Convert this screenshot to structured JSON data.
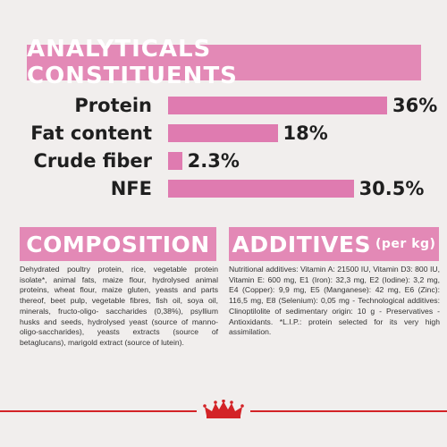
{
  "colors": {
    "pink": "#e389b6",
    "bar_pink": "#df7bb0",
    "text": "#1f1f1f",
    "background": "#f1eeed",
    "brand_red": "#d32327"
  },
  "analytics": {
    "title": "ANALYTICALS CONSTITUENTS",
    "rows": [
      {
        "label": "Protein",
        "value": "36%",
        "percent": 36
      },
      {
        "label": "Fat content",
        "value": "18%",
        "percent": 18
      },
      {
        "label": "Crude fiber",
        "value": "2.3%",
        "percent": 2.3
      },
      {
        "label": "NFE",
        "value": "30.5%",
        "percent": 30.5
      }
    ]
  },
  "composition": {
    "title": "COMPOSITION",
    "text": "Dehydrated poultry protein, rice, vegetable protein isolate*, animal fats, maize flour, hydrolysed animal proteins, wheat flour, maize gluten, yeasts and parts thereof, beet pulp, vegetable fibres, fish oil, soya oil, minerals, fructo-oligo- saccharides (0,38%), psyllium husks and seeds, hydrolysed yeast (source of manno-oligo-saccharides), yeasts extracts (source of betaglucans), marigold extract (source of lutein)."
  },
  "additives": {
    "title": "ADDITIVES",
    "subtitle": "(per kg)",
    "text": "Nutritional additives: Vitamin A: 21500 IU, Vitamin D3: 800 IU, Vitamin E: 600 mg, E1 (Iron): 32,3 mg, E2 (Iodine): 3,2 mg, E4 (Copper): 9,9 mg, E5 (Manganese): 42 mg, E6 (Zinc): 116,5 mg, E8 (Selenium): 0,05 mg - Technological additives: Clinoptilolite of sedimentary origin: 10 g - Preservatives - Antioxidants. *L.I.P.: protein selected for its very high assimilation."
  },
  "footer": {
    "logo_icon": "crown-icon"
  }
}
